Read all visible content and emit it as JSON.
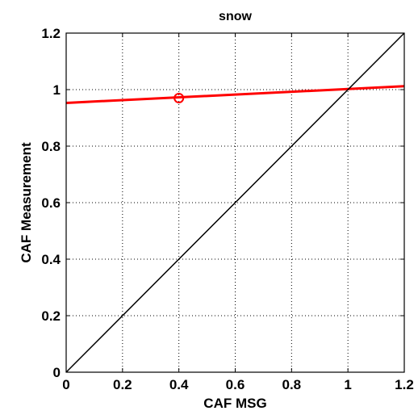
{
  "chart_data": {
    "type": "scatter",
    "title": "snow",
    "xlabel": "CAF MSG",
    "ylabel": "CAF Measurement",
    "xlim": [
      0,
      1.2
    ],
    "ylim": [
      0,
      1.2
    ],
    "xticks": [
      0,
      0.2,
      0.4,
      0.6,
      0.8,
      1,
      1.2
    ],
    "yticks": [
      0,
      0.2,
      0.4,
      0.6,
      0.8,
      1,
      1.2
    ],
    "xtick_labels": [
      "0",
      "0.2",
      "0.4",
      "0.6",
      "0.8",
      "1",
      "1.2"
    ],
    "ytick_labels": [
      "0",
      "0.2",
      "0.4",
      "0.6",
      "0.8",
      "1",
      "1.2"
    ],
    "grid": true,
    "series": [
      {
        "type": "scatter",
        "marker": "circle-open",
        "color": "#ff0000",
        "x": [
          0.4
        ],
        "y": [
          0.97
        ]
      },
      {
        "type": "line",
        "color": "#ff0000",
        "x": [
          0,
          1.2
        ],
        "y": [
          0.953,
          1.012
        ]
      },
      {
        "type": "line",
        "color": "#000000",
        "x": [
          0,
          1.2
        ],
        "y": [
          0,
          1.2
        ]
      }
    ]
  }
}
